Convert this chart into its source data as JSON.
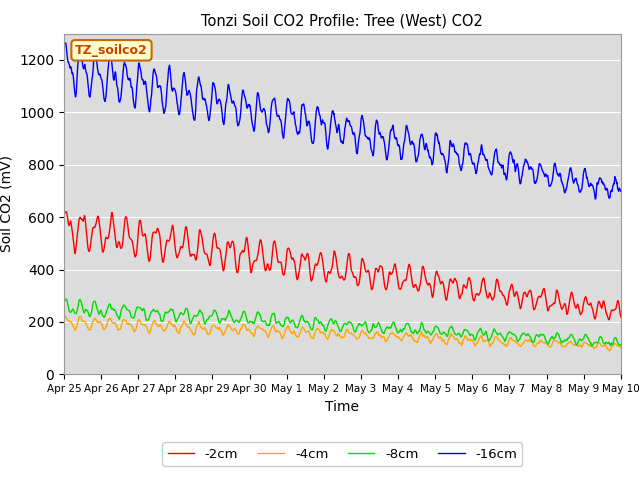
{
  "title": "Tonzi Soil CO2 Profile: Tree (West) CO2",
  "ylabel": "Soil CO2 (mV)",
  "xlabel": "Time",
  "legend_label": "TZ_soilco2",
  "ylim": [
    0,
    1300
  ],
  "background_color": "#dcdcdc",
  "series": {
    "-2cm": {
      "color": "#ff0000",
      "linewidth": 1.0
    },
    "-4cm": {
      "color": "#ffa500",
      "linewidth": 1.0
    },
    "-8cm": {
      "color": "#00dd00",
      "linewidth": 1.0
    },
    "-16cm": {
      "color": "#0000ff",
      "linewidth": 1.0
    }
  },
  "xtick_labels": [
    "Apr 25",
    "Apr 26",
    "Apr 27",
    "Apr 28",
    "Apr 29",
    "Apr 30",
    "May 1",
    "May 2",
    "May 3",
    "May 4",
    "May 5",
    "May 6",
    "May 7",
    "May 8",
    "May 9",
    "May 10"
  ],
  "ytick_values": [
    0,
    200,
    400,
    600,
    800,
    1000,
    1200
  ],
  "n_points": 1500,
  "seed": 42
}
